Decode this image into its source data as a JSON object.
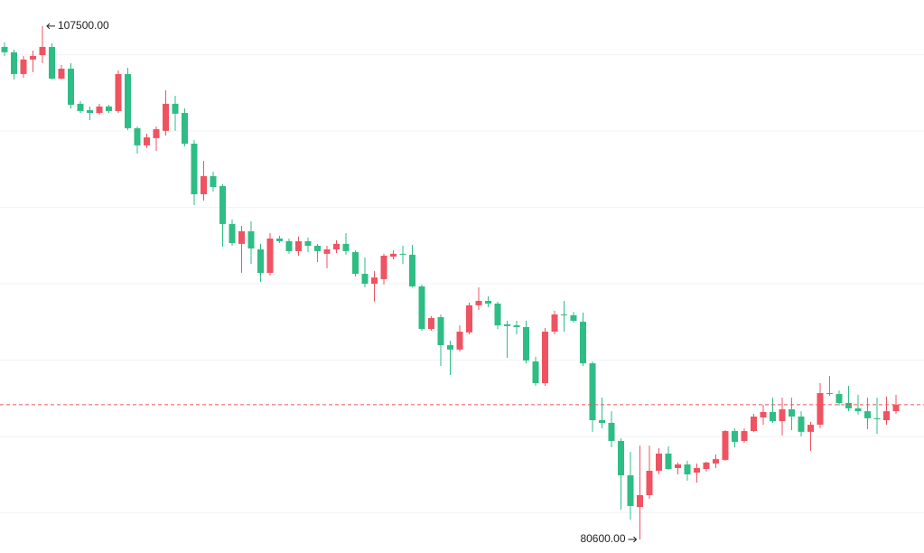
{
  "chart_data": {
    "type": "candlestick",
    "up_color": "#ef5361",
    "down_color": "#2ebd85",
    "high_label": "107500.00",
    "low_label": "80600.00",
    "ylim": [
      79890,
      108870
    ],
    "yticks": [
      82000,
      86000,
      90000,
      94000,
      98000,
      102000,
      106000
    ],
    "grid": true,
    "open": [
      106410,
      106130,
      104990,
      105750,
      105980,
      106410,
      104750,
      105270,
      103430,
      103100,
      102950,
      103290,
      103050,
      104990,
      102150,
      101250,
      101630,
      102010,
      103430,
      102950,
      101340,
      98690,
      99640,
      99120,
      97130,
      96090,
      96750,
      95800,
      94570,
      96370,
      96230,
      95710,
      96230,
      95990,
      95570,
      95800,
      96090,
      95660,
      94520,
      94000,
      94240,
      95420,
      95570,
      95520,
      93860,
      91630,
      92250,
      90780,
      90550,
      91450,
      92870,
      93100,
      92960,
      91870,
      91820,
      91730,
      89930,
      88790,
      91490,
      92390,
      92350,
      92010,
      89830,
      86850,
      86710,
      85760,
      83960,
      82300,
      82920,
      84200,
      85100,
      84340,
      84530,
      84100,
      84290,
      84580,
      84770,
      86280,
      85760,
      86280,
      86990,
      87280,
      86800,
      87420,
      87040,
      86240,
      86610,
      88270,
      88220,
      87750,
      87470,
      87320,
      86950,
      86850,
      87320
    ],
    "high": [
      106650,
      106270,
      105940,
      106220,
      107500,
      106600,
      105460,
      105560,
      103570,
      103290,
      103430,
      103380,
      105180,
      105320,
      102240,
      101860,
      102240,
      104140,
      103850,
      103190,
      101530,
      100440,
      99870,
      99210,
      97370,
      97030,
      97270,
      96090,
      96650,
      96510,
      96370,
      96470,
      96420,
      96090,
      95990,
      96280,
      96650,
      95750,
      95380,
      94670,
      95570,
      95750,
      95990,
      96040,
      93960,
      92300,
      92390,
      91020,
      91820,
      93010,
      93810,
      93340,
      93060,
      92060,
      92060,
      92060,
      90170,
      91680,
      92580,
      93100,
      92530,
      92490,
      89930,
      88030,
      87320,
      85900,
      85190,
      85520,
      85520,
      85380,
      85480,
      84630,
      84720,
      84580,
      84670,
      85050,
      86330,
      86420,
      86420,
      87180,
      87660,
      88030,
      88030,
      88030,
      87320,
      86760,
      88790,
      89170,
      88410,
      88650,
      88180,
      88030,
      88030,
      88080,
      88180
    ],
    "low": [
      105940,
      104710,
      104800,
      105090,
      105560,
      104710,
      104710,
      103190,
      102950,
      102570,
      102860,
      102950,
      102950,
      102050,
      100820,
      101110,
      100960,
      101770,
      102010,
      101200,
      98120,
      98360,
      98830,
      95940,
      95990,
      94570,
      95040,
      94100,
      94430,
      96130,
      95570,
      95470,
      95660,
      95140,
      94810,
      95610,
      95520,
      94380,
      93810,
      93060,
      93960,
      95280,
      95040,
      93810,
      91540,
      91540,
      89690,
      89220,
      90450,
      91350,
      92630,
      92770,
      91630,
      90120,
      91350,
      89830,
      88650,
      88650,
      91350,
      91490,
      91970,
      89690,
      86240,
      86420,
      85430,
      82160,
      81640,
      80600,
      82730,
      84010,
      84250,
      84010,
      83680,
      83580,
      84150,
      84340,
      84720,
      85430,
      85670,
      86240,
      86610,
      86710,
      86050,
      86330,
      86000,
      85240,
      86420,
      88130,
      87610,
      87320,
      87140,
      86380,
      86140,
      86610,
      87180
    ],
    "close": [
      106130,
      104990,
      105750,
      105940,
      106410,
      104750,
      105270,
      103380,
      103050,
      102950,
      103290,
      103050,
      104990,
      102150,
      101250,
      101670,
      102100,
      103430,
      102910,
      101340,
      98690,
      99640,
      99070,
      97130,
      96130,
      96750,
      95850,
      94570,
      96370,
      96230,
      95710,
      96230,
      95990,
      95710,
      95800,
      96090,
      95710,
      94520,
      94000,
      94330,
      95470,
      95570,
      95520,
      93860,
      91630,
      92200,
      90780,
      90550,
      91490,
      92870,
      93100,
      92960,
      91820,
      91780,
      91730,
      89980,
      88790,
      91490,
      92390,
      92350,
      92060,
      89830,
      86850,
      86710,
      85760,
      83960,
      82350,
      82920,
      84200,
      85100,
      84290,
      84530,
      84010,
      84340,
      84630,
      84810,
      86280,
      85710,
      86280,
      87040,
      87280,
      86800,
      87420,
      87040,
      86240,
      86610,
      88270,
      88220,
      87750,
      87470,
      87320,
      86950,
      86900,
      87320,
      87660
    ]
  }
}
